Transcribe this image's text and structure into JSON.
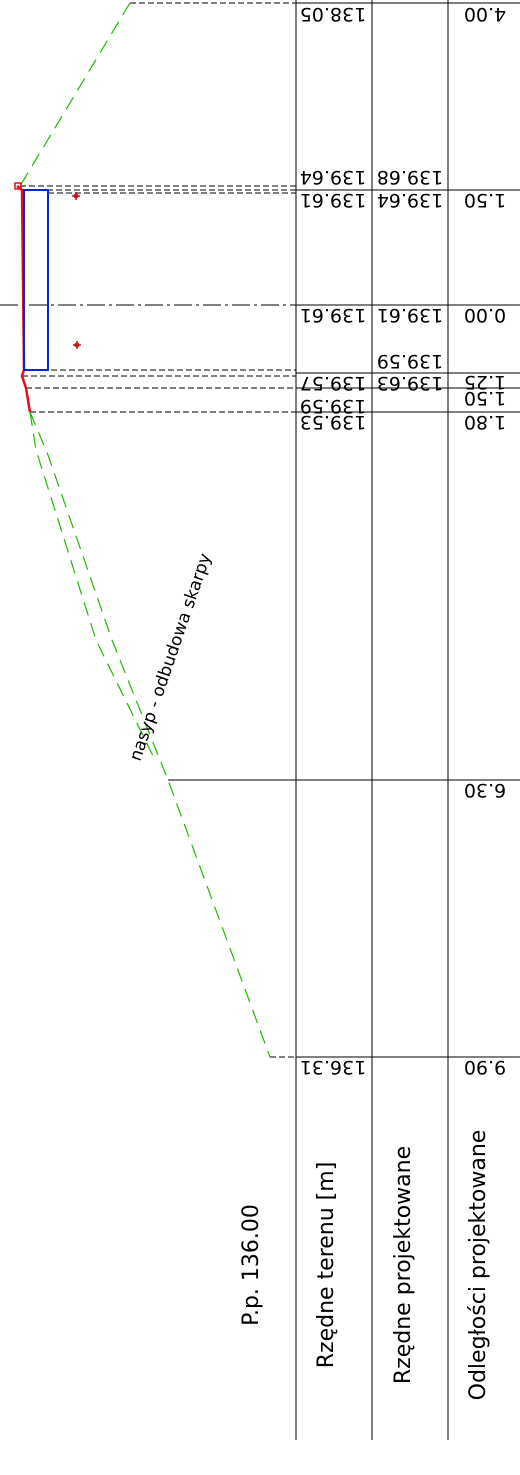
{
  "reference_level": "P.p. 136.00",
  "row_labels": {
    "terrain": "Rzędne terenu [m]",
    "design": "Rzędne projektowane",
    "distances": "Odległości projektowane"
  },
  "annotation": "nasyp - odbudowa skarpy",
  "terrain_values": [
    "138.05",
    "139.64",
    "139.61",
    "139.61",
    "139.57",
    "139.59",
    "139.53",
    "136.31"
  ],
  "design_values": [
    "139.68",
    "139.64",
    "139.61",
    "139.59",
    "139.63"
  ],
  "distance_values": [
    "4.00",
    "1.50",
    "0.00",
    "1.25",
    "1.50",
    "1.80",
    "6.30",
    "9.90"
  ],
  "colors": {
    "ground_line": "#22b800",
    "design_profile": "#e0101a",
    "pipe": "#0a22d8",
    "marker": "#c8141e"
  }
}
